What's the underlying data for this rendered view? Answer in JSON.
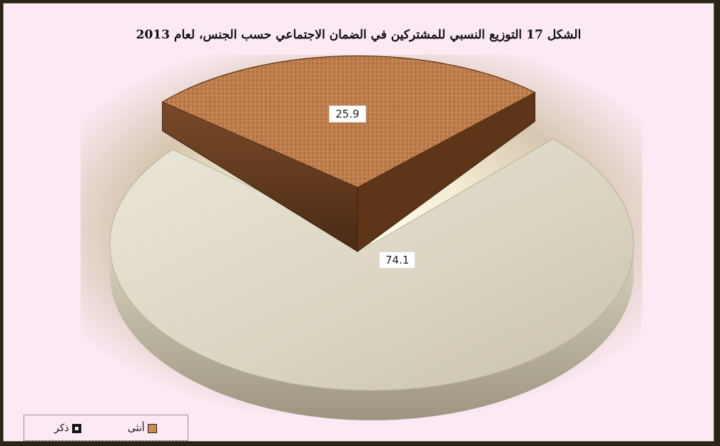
{
  "chart_data": {
    "type": "pie",
    "title": "الشكل 17 التوزيع النسبي للمشتركين في الضمان الاجتماعي حسب الجنس، لعام 2013",
    "categories": [
      "أنثى",
      "ذكر"
    ],
    "values": [
      25.9,
      74.1
    ],
    "data_labels": [
      "25.9",
      "74.1"
    ],
    "colors": {
      "أنثى": "#b9794a",
      "ذكر": "#e6e0cf"
    },
    "legend_placement": "bottom-left",
    "three_d": true,
    "exploded_slice": "أنثى"
  },
  "legend": {
    "female_label": "أنثى",
    "male_label": "ذكر"
  }
}
